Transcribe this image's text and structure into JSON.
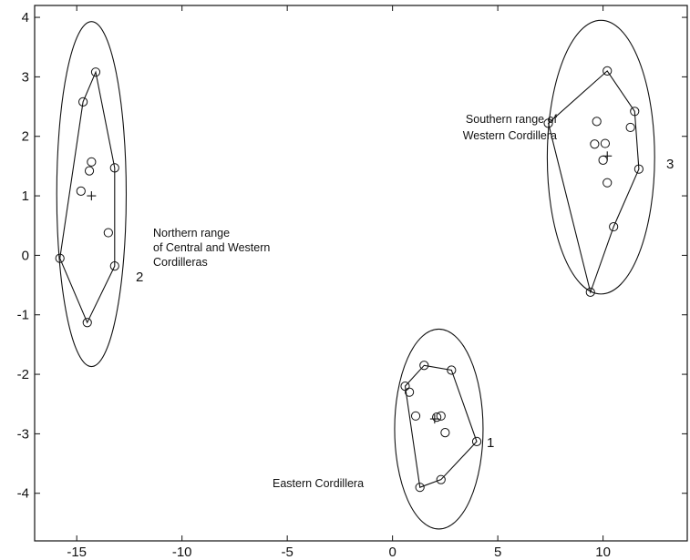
{
  "chart_data": {
    "type": "scatter",
    "title": "",
    "xlabel": "",
    "ylabel": "",
    "xlim": [
      -17,
      14
    ],
    "ylim": [
      -4.8,
      4.2
    ],
    "xticks": [
      -15,
      -10,
      -5,
      0,
      5,
      10
    ],
    "xtick_labels": [
      "-15",
      "-10",
      "-5",
      "0",
      "5",
      "10"
    ],
    "yticks": [
      4,
      3,
      2,
      1,
      0,
      -1,
      -2,
      -3,
      -4
    ],
    "ytick_labels": [
      "4",
      "3",
      "2",
      "1",
      "0",
      "-1",
      "-2",
      "-3",
      "-4"
    ],
    "grid": false,
    "colors": {
      "ink": "#111111",
      "background": "#ffffff"
    },
    "clusters": [
      {
        "label": "2",
        "annotation": [
          "Northern range",
          "of  Central and Western",
          "Cordilleras"
        ],
        "points": [
          [
            -14.1,
            3.08
          ],
          [
            -14.7,
            2.58
          ],
          [
            -14.3,
            1.57
          ],
          [
            -14.4,
            1.42
          ],
          [
            -14.8,
            1.08
          ],
          [
            -13.2,
            1.47
          ],
          [
            -13.5,
            0.38
          ],
          [
            -13.2,
            -0.18
          ],
          [
            -15.8,
            -0.05
          ],
          [
            -14.5,
            -1.13
          ]
        ],
        "hull": [
          [
            -14.1,
            3.08
          ],
          [
            -13.2,
            1.47
          ],
          [
            -13.2,
            -0.18
          ],
          [
            -14.5,
            -1.13
          ],
          [
            -15.8,
            -0.05
          ],
          [
            -14.7,
            2.58
          ]
        ],
        "centroid": [
          -14.3,
          1.0
        ],
        "ellipse": {
          "cx": -14.3,
          "cy": 1.03,
          "rx": 1.65,
          "ry": 2.9
        }
      },
      {
        "label": "3",
        "annotation": [
          "Southern range of",
          "Western Cordillera"
        ],
        "points": [
          [
            10.2,
            3.1
          ],
          [
            7.4,
            2.22
          ],
          [
            9.7,
            2.25
          ],
          [
            9.6,
            1.87
          ],
          [
            10.1,
            1.88
          ],
          [
            11.3,
            2.15
          ],
          [
            11.5,
            2.42
          ],
          [
            10.0,
            1.6
          ],
          [
            10.2,
            1.22
          ],
          [
            11.7,
            1.45
          ],
          [
            10.5,
            0.48
          ],
          [
            9.4,
            -0.62
          ]
        ],
        "hull": [
          [
            10.2,
            3.1
          ],
          [
            11.5,
            2.42
          ],
          [
            11.7,
            1.45
          ],
          [
            10.5,
            0.48
          ],
          [
            9.4,
            -0.62
          ],
          [
            7.4,
            2.22
          ]
        ],
        "centroid": [
          10.2,
          1.67
        ],
        "ellipse": {
          "cx": 9.9,
          "cy": 1.65,
          "rx": 2.55,
          "ry": 2.3
        }
      },
      {
        "label": "1",
        "annotation": [
          "Eastern Cordillera"
        ],
        "points": [
          [
            1.5,
            -1.85
          ],
          [
            2.8,
            -1.93
          ],
          [
            0.6,
            -2.2
          ],
          [
            0.8,
            -2.3
          ],
          [
            1.1,
            -2.7
          ],
          [
            2.1,
            -2.72
          ],
          [
            2.3,
            -2.7
          ],
          [
            2.5,
            -2.98
          ],
          [
            4.0,
            -3.13
          ],
          [
            1.3,
            -3.9
          ],
          [
            2.3,
            -3.77
          ]
        ],
        "hull": [
          [
            1.5,
            -1.85
          ],
          [
            2.8,
            -1.93
          ],
          [
            4.0,
            -3.13
          ],
          [
            2.3,
            -3.77
          ],
          [
            1.3,
            -3.9
          ],
          [
            0.6,
            -2.2
          ]
        ],
        "centroid": [
          2.0,
          -2.75
        ],
        "ellipse": {
          "cx": 2.2,
          "cy": -2.92,
          "rx": 2.1,
          "ry": 1.68
        }
      }
    ]
  }
}
